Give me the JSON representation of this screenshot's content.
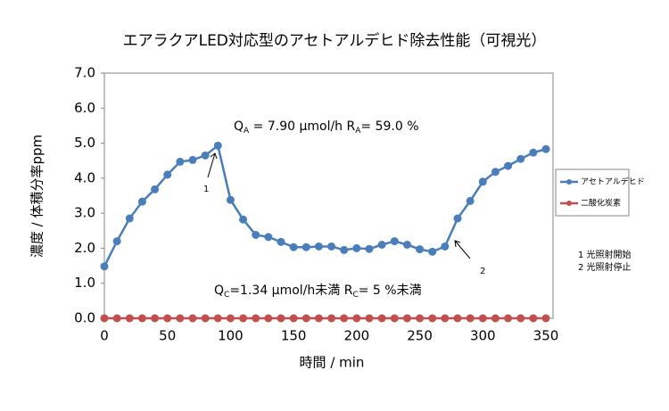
{
  "chart_data": {
    "type": "line",
    "title": "エアラクアLED対応型のアセトアルデヒド除去性能（可視光）",
    "x_label": "時間 / min",
    "y_label": "濃度 / 体積分率ppm",
    "x": [
      0,
      10,
      20,
      30,
      40,
      50,
      60,
      70,
      80,
      90,
      100,
      110,
      120,
      130,
      140,
      150,
      160,
      170,
      180,
      190,
      200,
      210,
      220,
      230,
      240,
      250,
      260,
      270,
      280,
      290,
      300,
      310,
      320,
      330,
      340,
      350
    ],
    "series": [
      {
        "name": "アセトアルデヒド",
        "color": "#4a7ebb",
        "values": [
          1.48,
          2.2,
          2.85,
          3.33,
          3.68,
          4.1,
          4.47,
          4.52,
          4.65,
          4.93,
          3.38,
          2.82,
          2.38,
          2.32,
          2.18,
          2.03,
          2.03,
          2.05,
          2.05,
          1.95,
          2.0,
          1.98,
          2.1,
          2.2,
          2.1,
          1.97,
          1.9,
          2.05,
          2.85,
          3.35,
          3.9,
          4.18,
          4.35,
          4.55,
          4.73,
          4.83
        ]
      },
      {
        "name": "二酸化炭素",
        "color": "#c0504d",
        "values": [
          0,
          0,
          0,
          0,
          0,
          0,
          0,
          0,
          0,
          0,
          0,
          0,
          0,
          0,
          0,
          0,
          0,
          0,
          0,
          0,
          0,
          0,
          0,
          0,
          0,
          0,
          0,
          0,
          0,
          0,
          0,
          0,
          0,
          0,
          0,
          0
        ]
      }
    ],
    "xlim": [
      0,
      350
    ],
    "xticks": [
      0,
      50,
      100,
      150,
      200,
      250,
      300,
      350
    ],
    "ylim": [
      0,
      7
    ],
    "yticks": [
      {
        "value": 0,
        "label": "0.0"
      },
      {
        "value": 1,
        "label": "1.0"
      },
      {
        "value": 2,
        "label": "2.0"
      },
      {
        "value": 3,
        "label": "3.0"
      },
      {
        "value": 4,
        "label": "4.0"
      },
      {
        "value": 5,
        "label": "5.0"
      },
      {
        "value": 6,
        "label": "6.0"
      },
      {
        "value": 7,
        "label": "7.0"
      }
    ],
    "grid": false,
    "legend": "right",
    "annotations": {
      "ra": [
        "Q",
        "A",
        " = 7.90 μmol/h  R",
        "A",
        "= 59.0 %"
      ],
      "rc": [
        "Q",
        "C",
        "=1.34 μmol/h未満  R",
        "C",
        "= 5 %未満"
      ],
      "marker1": "1",
      "marker2": "2",
      "notes": [
        "1 光照射開始",
        "2 光照射停止"
      ]
    }
  }
}
